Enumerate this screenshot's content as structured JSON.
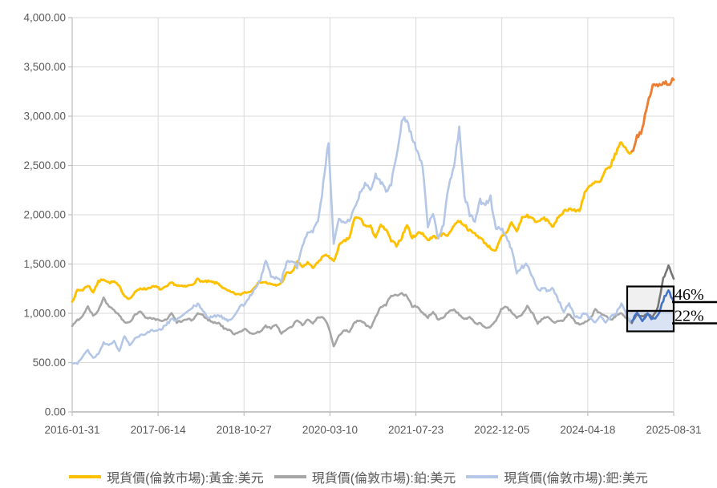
{
  "ui_colors": {
    "background": "#FFFFFF",
    "grid": "#D9D9D9",
    "axis": "#BFBFBF",
    "tick_text": "#595959",
    "annotation_text": "#000000",
    "annotation_line": "#000000",
    "box_platinum_fill": "#D9D9D9",
    "box_palladium_fill": "#B4C7E7"
  },
  "chart_data": {
    "type": "line",
    "title": "",
    "xlabel": "",
    "ylabel": "",
    "ylim": [
      0,
      4000
    ],
    "grid": "on",
    "legend_position": "bottom",
    "y_ticks": [
      0,
      500,
      1000,
      1500,
      2000,
      2500,
      3000,
      3500,
      4000
    ],
    "y_tick_labels": [
      "0.00",
      "500.00",
      "1,000.00",
      "1,500.00",
      "2,000.00",
      "2,500.00",
      "3,000.00",
      "3,500.00",
      "4,000.00"
    ],
    "x_tick_labels": [
      "2016-01-31",
      "2017-06-14",
      "2018-10-27",
      "2020-03-10",
      "2021-07-23",
      "2022-12-05",
      "2024-04-18",
      "2025-08-31"
    ],
    "highlight_start_month": "2024-12",
    "months": [
      "2016-01",
      "2016-02",
      "2016-03",
      "2016-04",
      "2016-05",
      "2016-06",
      "2016-07",
      "2016-08",
      "2016-09",
      "2016-10",
      "2016-11",
      "2016-12",
      "2017-01",
      "2017-02",
      "2017-03",
      "2017-04",
      "2017-05",
      "2017-06",
      "2017-07",
      "2017-08",
      "2017-09",
      "2017-10",
      "2017-11",
      "2017-12",
      "2018-01",
      "2018-02",
      "2018-03",
      "2018-04",
      "2018-05",
      "2018-06",
      "2018-07",
      "2018-08",
      "2018-09",
      "2018-10",
      "2018-11",
      "2018-12",
      "2019-01",
      "2019-02",
      "2019-03",
      "2019-04",
      "2019-05",
      "2019-06",
      "2019-07",
      "2019-08",
      "2019-09",
      "2019-10",
      "2019-11",
      "2019-12",
      "2020-01",
      "2020-02",
      "2020-03",
      "2020-04",
      "2020-05",
      "2020-06",
      "2020-07",
      "2020-08",
      "2020-09",
      "2020-10",
      "2020-11",
      "2020-12",
      "2021-01",
      "2021-02",
      "2021-03",
      "2021-04",
      "2021-05",
      "2021-06",
      "2021-07",
      "2021-08",
      "2021-09",
      "2021-10",
      "2021-11",
      "2021-12",
      "2022-01",
      "2022-02",
      "2022-03",
      "2022-04",
      "2022-05",
      "2022-06",
      "2022-07",
      "2022-08",
      "2022-09",
      "2022-10",
      "2022-11",
      "2022-12",
      "2023-01",
      "2023-02",
      "2023-03",
      "2023-04",
      "2023-05",
      "2023-06",
      "2023-07",
      "2023-08",
      "2023-09",
      "2023-10",
      "2023-11",
      "2023-12",
      "2024-01",
      "2024-02",
      "2024-03",
      "2024-04",
      "2024-05",
      "2024-06",
      "2024-07",
      "2024-08",
      "2024-09",
      "2024-10",
      "2024-11",
      "2024-12",
      "2025-01",
      "2025-02",
      "2025-03",
      "2025-04",
      "2025-05",
      "2025-06",
      "2025-07",
      "2025-08"
    ],
    "series": [
      {
        "metal": "gold",
        "name": "現貨價(倫敦市場):黃金:美元",
        "color": "#FFC000",
        "highlight_color": "#ED7D31",
        "values": [
          1118,
          1235,
          1237,
          1285,
          1215,
          1320,
          1350,
          1310,
          1322,
          1272,
          1178,
          1146,
          1210,
          1255,
          1245,
          1266,
          1270,
          1242,
          1267,
          1311,
          1283,
          1271,
          1275,
          1296,
          1345,
          1318,
          1323,
          1313,
          1300,
          1250,
          1221,
          1202,
          1187,
          1215,
          1217,
          1279,
          1320,
          1313,
          1292,
          1283,
          1306,
          1409,
          1414,
          1520,
          1472,
          1511,
          1460,
          1515,
          1584,
          1586,
          1520,
          1686,
          1730,
          1768,
          1964,
          1968,
          1886,
          1879,
          1777,
          1888,
          1848,
          1734,
          1691,
          1768,
          1900,
          1763,
          1814,
          1814,
          1743,
          1777,
          1775,
          1806,
          1795,
          1901,
          1937,
          1897,
          1837,
          1807,
          1766,
          1711,
          1661,
          1633,
          1769,
          1812,
          1928,
          1827,
          1969,
          1990,
          1963,
          1919,
          1965,
          1940,
          1871,
          1984,
          2036,
          2063,
          2040,
          2044,
          2230,
          2286,
          2327,
          2331,
          2448,
          2503,
          2635,
          2744,
          2651,
          2625,
          2798,
          2858,
          3124,
          3310,
          3310,
          3350,
          3330,
          3370
        ]
      },
      {
        "metal": "platinum",
        "name": "現貨價(倫敦市場):鉑:美元",
        "color": "#A6A6A6",
        "highlight_color": "#767676",
        "values": [
          870,
          930,
          975,
          1075,
          978,
          1024,
          1150,
          1065,
          1030,
          980,
          910,
          905,
          990,
          1025,
          950,
          945,
          935,
          925,
          930,
          1000,
          910,
          920,
          940,
          930,
          1000,
          980,
          935,
          905,
          905,
          850,
          830,
          790,
          815,
          840,
          800,
          795,
          820,
          870,
          845,
          890,
          795,
          835,
          865,
          930,
          885,
          930,
          900,
          965,
          960,
          865,
          660,
          770,
          835,
          815,
          905,
          930,
          890,
          845,
          965,
          1070,
          1080,
          1190,
          1175,
          1200,
          1180,
          1075,
          1060,
          1000,
          960,
          1020,
          935,
          965,
          1020,
          1040,
          985,
          935,
          960,
          900,
          895,
          855,
          860,
          925,
          1040,
          1070,
          1010,
          955,
          990,
          1075,
          1000,
          900,
          945,
          965,
          905,
          930,
          930,
          995,
          925,
          880,
          905,
          940,
          1035,
          995,
          975,
          930,
          980,
          995,
          945,
          905,
          985,
          970,
          995,
          965,
          1065,
          1355,
          1480,
          1350
        ]
      },
      {
        "metal": "palladium",
        "name": "現貨價(倫敦市場):鈀:美元",
        "color": "#B4C7E7",
        "highlight_color": "#4472C4",
        "values": [
          497,
          490,
          560,
          625,
          545,
          590,
          700,
          675,
          715,
          615,
          770,
          680,
          745,
          775,
          790,
          825,
          815,
          840,
          885,
          935,
          935,
          975,
          1010,
          1060,
          1090,
          1035,
          950,
          965,
          985,
          950,
          925,
          975,
          1075,
          1080,
          1180,
          1260,
          1340,
          1540,
          1380,
          1355,
          1330,
          1515,
          1540,
          1465,
          1690,
          1800,
          1840,
          1920,
          2300,
          2750,
          1700,
          1960,
          1940,
          1950,
          2075,
          2215,
          2330,
          2225,
          2400,
          2340,
          2250,
          2320,
          2620,
          2935,
          2985,
          2770,
          2655,
          2485,
          1895,
          2010,
          1755,
          1910,
          2305,
          2480,
          2900,
          2205,
          2000,
          1940,
          2140,
          2110,
          2170,
          1865,
          1860,
          1790,
          1640,
          1415,
          1465,
          1500,
          1370,
          1230,
          1255,
          1220,
          1250,
          1120,
          1025,
          1100,
          980,
          950,
          1005,
          950,
          915,
          975,
          905,
          965,
          1000,
          1105,
          980,
          910,
          1015,
          920,
          990,
          940,
          975,
          1135,
          1245,
          1110
        ]
      }
    ],
    "annotations": [
      {
        "text": "46%"
      },
      {
        "text": "22%"
      }
    ]
  }
}
